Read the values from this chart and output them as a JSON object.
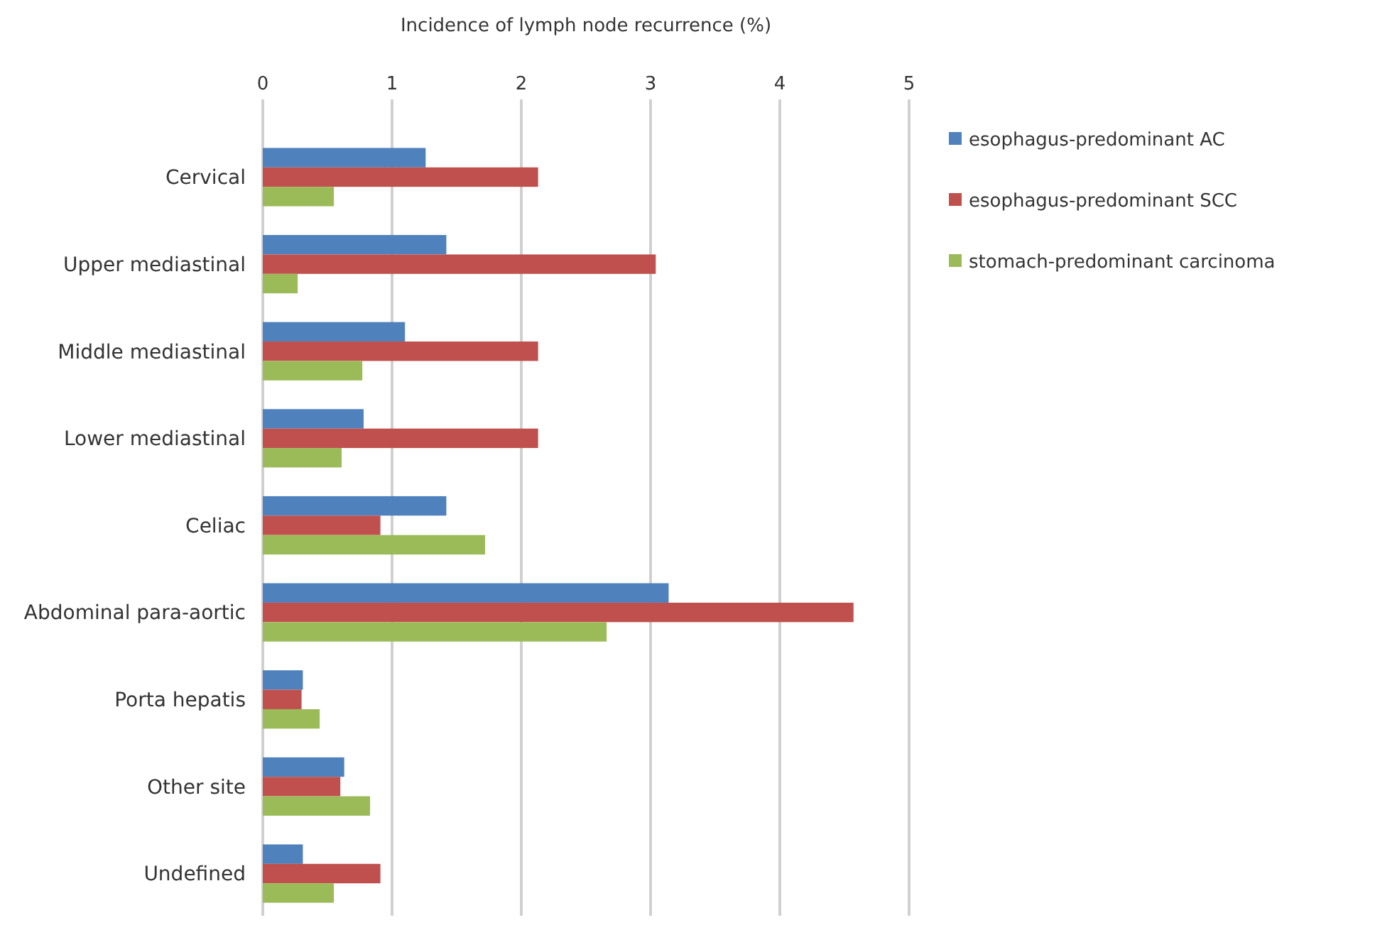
{
  "chart_data": {
    "type": "bar",
    "orientation": "horizontal",
    "xlabel": "Incidence of lymph node recurrence (%)",
    "categories": [
      "Cervical",
      "Upper mediastinal",
      "Middle mediastinal",
      "Lower mediastinal",
      "Celiac",
      "Abdominal para-aortic",
      "Porta hepatis",
      "Other site",
      "Undefined"
    ],
    "series": [
      {
        "name": "esophagus-predominant  AC",
        "color": "#4f81bd",
        "values": [
          1.26,
          1.42,
          1.1,
          0.78,
          1.42,
          3.14,
          0.31,
          0.63,
          0.31
        ]
      },
      {
        "name": "esophagus-predominant  SCC",
        "color": "#c0504d",
        "values": [
          2.13,
          3.04,
          2.13,
          2.13,
          0.91,
          4.57,
          0.3,
          0.6,
          0.91
        ]
      },
      {
        "name": "stomach-predominant carcinoma",
        "color": "#9bbb59",
        "values": [
          0.55,
          0.27,
          0.77,
          0.61,
          1.72,
          2.66,
          0.44,
          0.83,
          0.55
        ]
      }
    ],
    "xlim": [
      0,
      5
    ],
    "xticks": [
      0,
      1,
      2,
      3,
      4,
      5
    ],
    "grid": "x",
    "legend": "top right"
  }
}
